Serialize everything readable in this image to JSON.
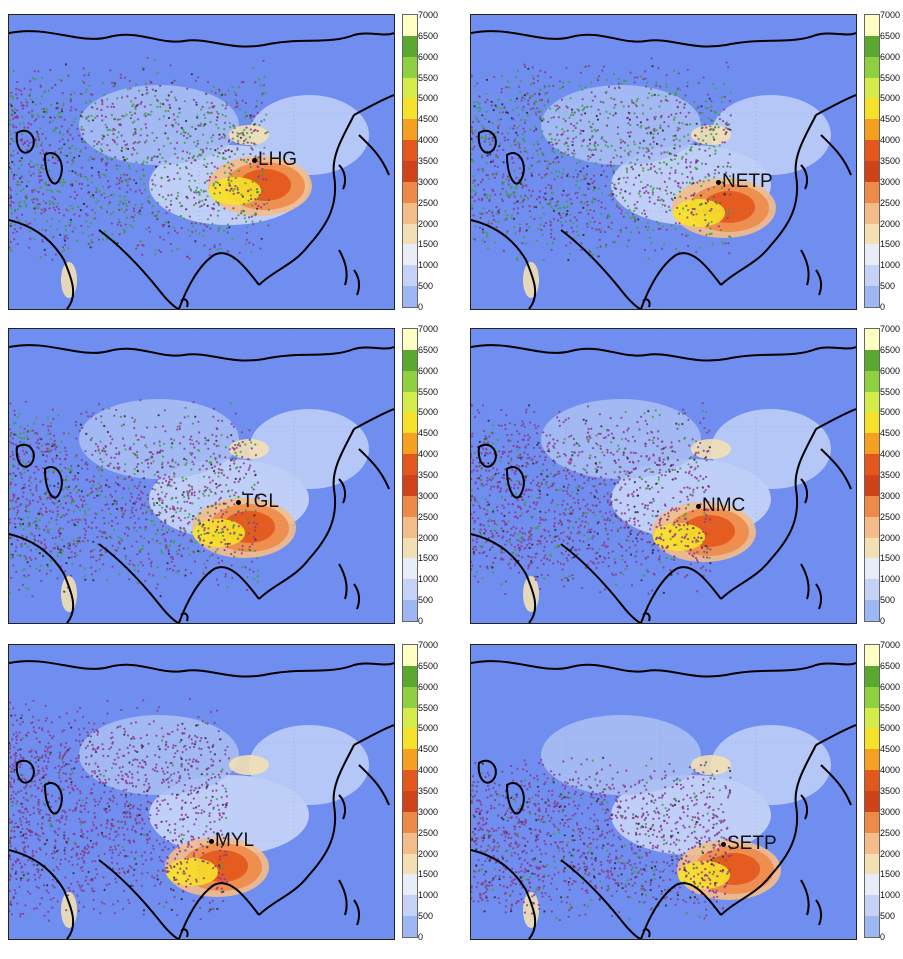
{
  "colorbar": {
    "ticks": [
      "7000",
      "6500",
      "6000",
      "5500",
      "5000",
      "4500",
      "4000",
      "3500",
      "3000",
      "2500",
      "2000",
      "1500",
      "1000",
      "500",
      "0"
    ],
    "bands": [
      "#ffffc4",
      "#5aa830",
      "#8fd040",
      "#d4ec4a",
      "#f7e22b",
      "#f5a020",
      "#e3561c",
      "#d0421a",
      "#ee8a48",
      "#f4bc88",
      "#f2e0b4",
      "#e8edf8",
      "#c3d2f6",
      "#9db6f4",
      "#6f8ef0"
    ]
  },
  "colors": {
    "ocean": "#6f8ef0",
    "coast": "#000000",
    "trajectory_green": "#3f9f3a",
    "trajectory_purple": "#8a3a8a",
    "trajectory_dark": "#2a2a2a"
  },
  "panels": [
    {
      "station": "LHG"
    },
    {
      "station": "NETP"
    },
    {
      "station": "TGL"
    },
    {
      "station": "NMC"
    },
    {
      "station": "MYL"
    },
    {
      "station": "SETP"
    }
  ]
}
